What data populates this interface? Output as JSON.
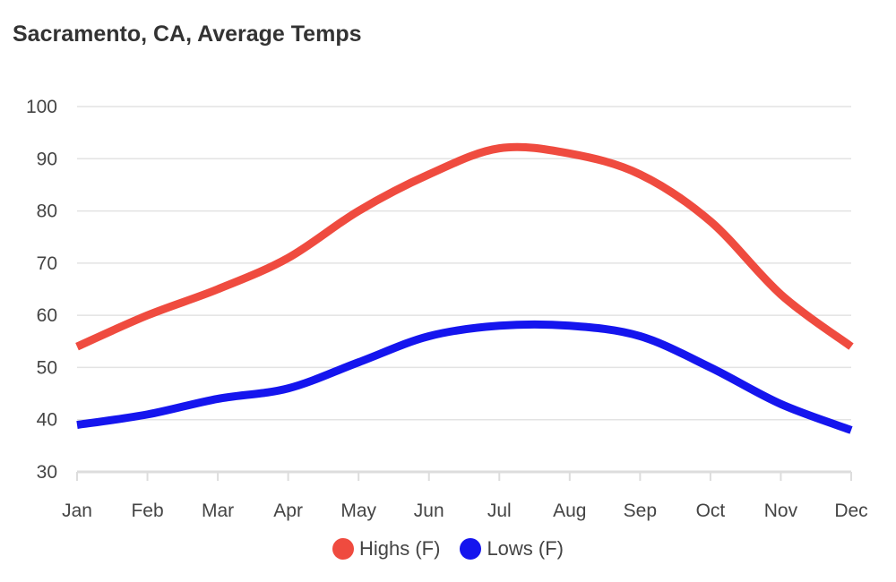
{
  "chart_data": {
    "type": "line",
    "title": "Sacramento, CA, Average Temps",
    "categories": [
      "Jan",
      "Feb",
      "Mar",
      "Apr",
      "May",
      "Jun",
      "Jul",
      "Aug",
      "Sep",
      "Oct",
      "Nov",
      "Dec"
    ],
    "series": [
      {
        "name": "Highs (F)",
        "color": "#ef4b3f",
        "values": [
          54,
          60,
          65,
          71,
          80,
          87,
          92,
          91,
          87,
          78,
          64,
          54
        ]
      },
      {
        "name": "Lows (F)",
        "color": "#1515ee",
        "values": [
          39,
          41,
          44,
          46,
          51,
          56,
          58,
          58,
          56,
          50,
          43,
          38
        ]
      }
    ],
    "ylim": [
      30,
      100
    ],
    "yticks": [
      30,
      40,
      50,
      60,
      70,
      80,
      90,
      100
    ],
    "grid": true,
    "legend": "bottom-center",
    "xlabel": "",
    "ylabel": ""
  }
}
